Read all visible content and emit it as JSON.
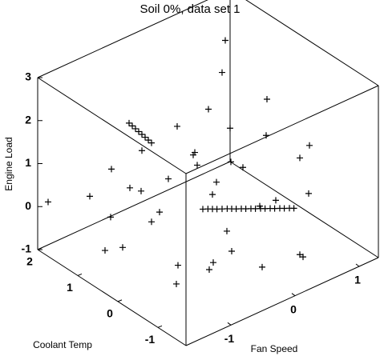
{
  "chart_data": {
    "type": "scatter3d",
    "title": "Soil 0%, data set 1",
    "xlabel": "Fan Speed",
    "ylabel": "Coolant Temp",
    "zlabel": "Engine Load",
    "xlim": [
      -1.7,
      1.3
    ],
    "ylim": [
      -1.7,
      2
    ],
    "zlim": [
      -1,
      3
    ],
    "xticks": [
      -1,
      0,
      1
    ],
    "yticks": [
      -1,
      0,
      1,
      2
    ],
    "zticks": [
      -1,
      0,
      1,
      2,
      3
    ],
    "color": "#000000",
    "marker": "+",
    "x": [
      -0.5,
      -0.42,
      -0.35,
      -0.28,
      -0.2,
      -0.12,
      -0.05,
      0.02,
      0.1,
      0.17,
      0.25,
      0.32,
      0.4,
      0.47,
      0.55,
      0.62,
      0.7,
      0.77,
      0.85,
      0.92,
      -0.9,
      -0.85,
      -0.8,
      -0.75,
      -0.7,
      -0.65,
      -0.6,
      -0.55,
      -1.2,
      -1.0,
      -0.8,
      -1.4,
      -0.6,
      -0.3,
      0.1,
      0.4,
      0.8,
      1.0,
      -1.1,
      -0.9,
      -0.5,
      -0.2,
      0.2,
      0.5,
      0.9,
      1.1,
      -1.5,
      -1.3,
      -0.7,
      -0.1,
      0.3,
      0.6,
      -0.4,
      0.0,
      0.7,
      1.2,
      -1.6,
      -0.2,
      0.2,
      -0.8,
      -1.2,
      0.5,
      1.0,
      -0.4,
      0.3,
      -0.9,
      0.1,
      -0.6
    ],
    "y": [
      -0.2,
      -0.2,
      -0.2,
      -0.2,
      -0.2,
      -0.2,
      -0.2,
      -0.2,
      -0.2,
      -0.2,
      -0.2,
      -0.2,
      -0.2,
      -0.2,
      -0.2,
      -0.2,
      -0.2,
      -0.2,
      -0.2,
      -0.2,
      1.0,
      1.0,
      1.0,
      1.0,
      1.0,
      1.0,
      1.0,
      1.0,
      1.5,
      1.3,
      1.6,
      0.8,
      0.5,
      1.2,
      1.4,
      0.9,
      1.2,
      0.6,
      -0.5,
      -1.0,
      -0.8,
      -1.2,
      -0.9,
      -1.1,
      -0.6,
      -0.3,
      0.2,
      -0.2,
      0.1,
      0.3,
      0.6,
      1.0,
      0.2,
      -0.4,
      0.3,
      0.1,
      1.9,
      1.8,
      -1.5,
      -1.4,
      0.5,
      1.6,
      1.5,
      -0.3,
      -0.5,
      0.7,
      0.9,
      -0.6
    ],
    "z": [
      0.45,
      0.4,
      0.35,
      0.3,
      0.25,
      0.2,
      0.15,
      0.1,
      0.05,
      0.0,
      -0.05,
      -0.1,
      -0.15,
      -0.2,
      -0.25,
      -0.3,
      -0.35,
      -0.4,
      -0.45,
      -0.5,
      2.0,
      1.9,
      1.8,
      1.7,
      1.6,
      1.5,
      1.4,
      1.3,
      0.2,
      -0.3,
      0.5,
      -0.5,
      0.8,
      -0.6,
      1.0,
      -0.2,
      0.6,
      1.5,
      -0.7,
      -0.2,
      0.3,
      -0.5,
      0.6,
      -0.8,
      0.1,
      0.9,
      0.0,
      0.7,
      -0.9,
      2.2,
      2.6,
      2.9,
      1.4,
      1.2,
      -0.6,
      0.3,
      0.1,
      0.4,
      -0.3,
      0.4,
      1.0,
      0.0,
      -0.5,
      -0.8,
      1.8,
      0.6,
      0.4,
      1.1
    ]
  }
}
